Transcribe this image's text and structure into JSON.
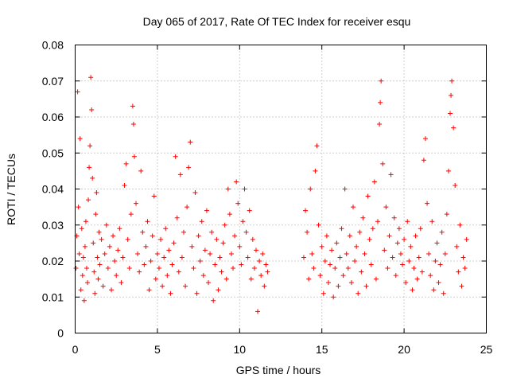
{
  "chart_data": {
    "type": "scatter",
    "title": "Day 065 of 2017, Rate Of TEC Index for receiver esqu",
    "xlabel": "GPS time / hours",
    "ylabel": "ROTI / TECUs",
    "xlim": [
      0,
      25
    ],
    "ylim": [
      0,
      0.08
    ],
    "xticks": [
      "0",
      "5",
      "10",
      "15",
      "20",
      "25"
    ],
    "yticks": [
      "0",
      "0.01",
      "0.02",
      "0.03",
      "0.04",
      "0.05",
      "0.06",
      "0.07",
      "0.08"
    ],
    "grid": true,
    "marker": "+",
    "color": "#ff0000",
    "series": [
      {
        "name": "ROTI",
        "points": [
          [
            0.05,
            0.018
          ],
          [
            0.1,
            0.027
          ],
          [
            0.15,
            0.067
          ],
          [
            0.2,
            0.035
          ],
          [
            0.25,
            0.022
          ],
          [
            0.3,
            0.054
          ],
          [
            0.35,
            0.012
          ],
          [
            0.4,
            0.029
          ],
          [
            0.45,
            0.016
          ],
          [
            0.5,
            0.021
          ],
          [
            0.55,
            0.009
          ],
          [
            0.6,
            0.024
          ],
          [
            0.65,
            0.031
          ],
          [
            0.7,
            0.018
          ],
          [
            0.75,
            0.014
          ],
          [
            0.8,
            0.037
          ],
          [
            0.85,
            0.046
          ],
          [
            0.9,
            0.052
          ],
          [
            0.95,
            0.071
          ],
          [
            1.0,
            0.062
          ],
          [
            1.05,
            0.043
          ],
          [
            1.1,
            0.025
          ],
          [
            1.15,
            0.017
          ],
          [
            1.2,
            0.011
          ],
          [
            1.25,
            0.033
          ],
          [
            1.3,
            0.039
          ],
          [
            1.35,
            0.021
          ],
          [
            1.4,
            0.015
          ],
          [
            1.45,
            0.028
          ],
          [
            1.5,
            0.019
          ],
          [
            1.6,
            0.026
          ],
          [
            1.7,
            0.013
          ],
          [
            1.8,
            0.022
          ],
          [
            1.9,
            0.03
          ],
          [
            2.0,
            0.018
          ],
          [
            2.1,
            0.024
          ],
          [
            2.2,
            0.012
          ],
          [
            2.3,
            0.027
          ],
          [
            2.4,
            0.02
          ],
          [
            2.5,
            0.016
          ],
          [
            2.6,
            0.023
          ],
          [
            2.7,
            0.029
          ],
          [
            2.8,
            0.014
          ],
          [
            2.9,
            0.021
          ],
          [
            3.0,
            0.041
          ],
          [
            3.1,
            0.047
          ],
          [
            3.2,
            0.026
          ],
          [
            3.3,
            0.018
          ],
          [
            3.4,
            0.033
          ],
          [
            3.5,
            0.063
          ],
          [
            3.55,
            0.058
          ],
          [
            3.6,
            0.049
          ],
          [
            3.7,
            0.036
          ],
          [
            3.8,
            0.022
          ],
          [
            3.9,
            0.017
          ],
          [
            4.0,
            0.045
          ],
          [
            4.1,
            0.028
          ],
          [
            4.2,
            0.019
          ],
          [
            4.3,
            0.024
          ],
          [
            4.4,
            0.031
          ],
          [
            4.5,
            0.012
          ],
          [
            4.6,
            0.02
          ],
          [
            4.7,
            0.027
          ],
          [
            4.8,
            0.038
          ],
          [
            4.9,
            0.015
          ],
          [
            5.0,
            0.022
          ],
          [
            5.1,
            0.018
          ],
          [
            5.2,
            0.026
          ],
          [
            5.3,
            0.013
          ],
          [
            5.4,
            0.021
          ],
          [
            5.5,
            0.029
          ],
          [
            5.6,
            0.016
          ],
          [
            5.7,
            0.023
          ],
          [
            5.8,
            0.011
          ],
          [
            5.9,
            0.019
          ],
          [
            6.0,
            0.025
          ],
          [
            6.1,
            0.049
          ],
          [
            6.2,
            0.032
          ],
          [
            6.3,
            0.017
          ],
          [
            6.4,
            0.044
          ],
          [
            6.5,
            0.021
          ],
          [
            6.6,
            0.028
          ],
          [
            6.7,
            0.013
          ],
          [
            6.8,
            0.035
          ],
          [
            6.9,
            0.046
          ],
          [
            7.0,
            0.053
          ],
          [
            7.1,
            0.024
          ],
          [
            7.2,
            0.018
          ],
          [
            7.3,
            0.039
          ],
          [
            7.4,
            0.011
          ],
          [
            7.5,
            0.027
          ],
          [
            7.6,
            0.02
          ],
          [
            7.7,
            0.031
          ],
          [
            7.8,
            0.016
          ],
          [
            7.9,
            0.023
          ],
          [
            8.0,
            0.034
          ],
          [
            8.1,
            0.014
          ],
          [
            8.2,
            0.022
          ],
          [
            8.3,
            0.028
          ],
          [
            8.4,
            0.009
          ],
          [
            8.5,
            0.019
          ],
          [
            8.6,
            0.026
          ],
          [
            8.7,
            0.012
          ],
          [
            8.8,
            0.021
          ],
          [
            8.9,
            0.017
          ],
          [
            9.0,
            0.025
          ],
          [
            9.1,
            0.03
          ],
          [
            9.2,
            0.015
          ],
          [
            9.3,
            0.04
          ],
          [
            9.4,
            0.033
          ],
          [
            9.5,
            0.022
          ],
          [
            9.6,
            0.018
          ],
          [
            9.7,
            0.027
          ],
          [
            9.8,
            0.042
          ],
          [
            9.9,
            0.036
          ],
          [
            10.0,
            0.024
          ],
          [
            10.1,
            0.019
          ],
          [
            10.2,
            0.031
          ],
          [
            10.3,
            0.04
          ],
          [
            10.4,
            0.028
          ],
          [
            10.5,
            0.021
          ],
          [
            10.6,
            0.034
          ],
          [
            10.7,
            0.015
          ],
          [
            10.8,
            0.026
          ],
          [
            10.9,
            0.018
          ],
          [
            11.0,
            0.023
          ],
          [
            11.1,
            0.006
          ],
          [
            11.2,
            0.02
          ],
          [
            11.3,
            0.016
          ],
          [
            11.4,
            0.022
          ],
          [
            11.5,
            0.013
          ],
          [
            11.6,
            0.019
          ],
          [
            11.7,
            0.017
          ],
          [
            13.9,
            0.021
          ],
          [
            14.0,
            0.034
          ],
          [
            14.1,
            0.028
          ],
          [
            14.2,
            0.015
          ],
          [
            14.3,
            0.04
          ],
          [
            14.4,
            0.022
          ],
          [
            14.5,
            0.018
          ],
          [
            14.6,
            0.045
          ],
          [
            14.7,
            0.052
          ],
          [
            14.8,
            0.03
          ],
          [
            14.9,
            0.016
          ],
          [
            15.0,
            0.024
          ],
          [
            15.1,
            0.011
          ],
          [
            15.2,
            0.02
          ],
          [
            15.3,
            0.027
          ],
          [
            15.4,
            0.014
          ],
          [
            15.5,
            0.019
          ],
          [
            15.6,
            0.023
          ],
          [
            15.7,
            0.01
          ],
          [
            15.8,
            0.018
          ],
          [
            15.9,
            0.025
          ],
          [
            16.0,
            0.013
          ],
          [
            16.1,
            0.021
          ],
          [
            16.2,
            0.029
          ],
          [
            16.3,
            0.016
          ],
          [
            16.4,
            0.04
          ],
          [
            16.5,
            0.022
          ],
          [
            16.6,
            0.018
          ],
          [
            16.7,
            0.027
          ],
          [
            16.8,
            0.014
          ],
          [
            16.9,
            0.035
          ],
          [
            17.0,
            0.02
          ],
          [
            17.1,
            0.024
          ],
          [
            17.2,
            0.011
          ],
          [
            17.3,
            0.028
          ],
          [
            17.4,
            0.017
          ],
          [
            17.5,
            0.032
          ],
          [
            17.6,
            0.022
          ],
          [
            17.7,
            0.013
          ],
          [
            17.8,
            0.038
          ],
          [
            17.9,
            0.026
          ],
          [
            18.0,
            0.019
          ],
          [
            18.1,
            0.029
          ],
          [
            18.2,
            0.042
          ],
          [
            18.3,
            0.015
          ],
          [
            18.4,
            0.031
          ],
          [
            18.5,
            0.058
          ],
          [
            18.55,
            0.064
          ],
          [
            18.6,
            0.07
          ],
          [
            18.7,
            0.047
          ],
          [
            18.8,
            0.023
          ],
          [
            18.9,
            0.035
          ],
          [
            19.0,
            0.018
          ],
          [
            19.1,
            0.027
          ],
          [
            19.2,
            0.044
          ],
          [
            19.3,
            0.021
          ],
          [
            19.4,
            0.032
          ],
          [
            19.5,
            0.016
          ],
          [
            19.6,
            0.025
          ],
          [
            19.7,
            0.029
          ],
          [
            19.8,
            0.022
          ],
          [
            19.9,
            0.019
          ],
          [
            20.0,
            0.026
          ],
          [
            20.1,
            0.014
          ],
          [
            20.2,
            0.031
          ],
          [
            20.3,
            0.02
          ],
          [
            20.4,
            0.024
          ],
          [
            20.5,
            0.012
          ],
          [
            20.6,
            0.018
          ],
          [
            20.7,
            0.027
          ],
          [
            20.8,
            0.015
          ],
          [
            20.9,
            0.021
          ],
          [
            21.0,
            0.029
          ],
          [
            21.1,
            0.017
          ],
          [
            21.2,
            0.048
          ],
          [
            21.3,
            0.054
          ],
          [
            21.4,
            0.036
          ],
          [
            21.5,
            0.022
          ],
          [
            21.6,
            0.016
          ],
          [
            21.7,
            0.031
          ],
          [
            21.8,
            0.012
          ],
          [
            21.9,
            0.02
          ],
          [
            22.0,
            0.025
          ],
          [
            22.1,
            0.014
          ],
          [
            22.2,
            0.019
          ],
          [
            22.3,
            0.028
          ],
          [
            22.4,
            0.011
          ],
          [
            22.5,
            0.022
          ],
          [
            22.6,
            0.033
          ],
          [
            22.7,
            0.045
          ],
          [
            22.8,
            0.061
          ],
          [
            22.85,
            0.066
          ],
          [
            22.9,
            0.07
          ],
          [
            23.0,
            0.057
          ],
          [
            23.1,
            0.041
          ],
          [
            23.2,
            0.024
          ],
          [
            23.3,
            0.017
          ],
          [
            23.4,
            0.03
          ],
          [
            23.5,
            0.013
          ],
          [
            23.6,
            0.021
          ],
          [
            23.7,
            0.018
          ],
          [
            23.8,
            0.026
          ]
        ]
      }
    ]
  }
}
